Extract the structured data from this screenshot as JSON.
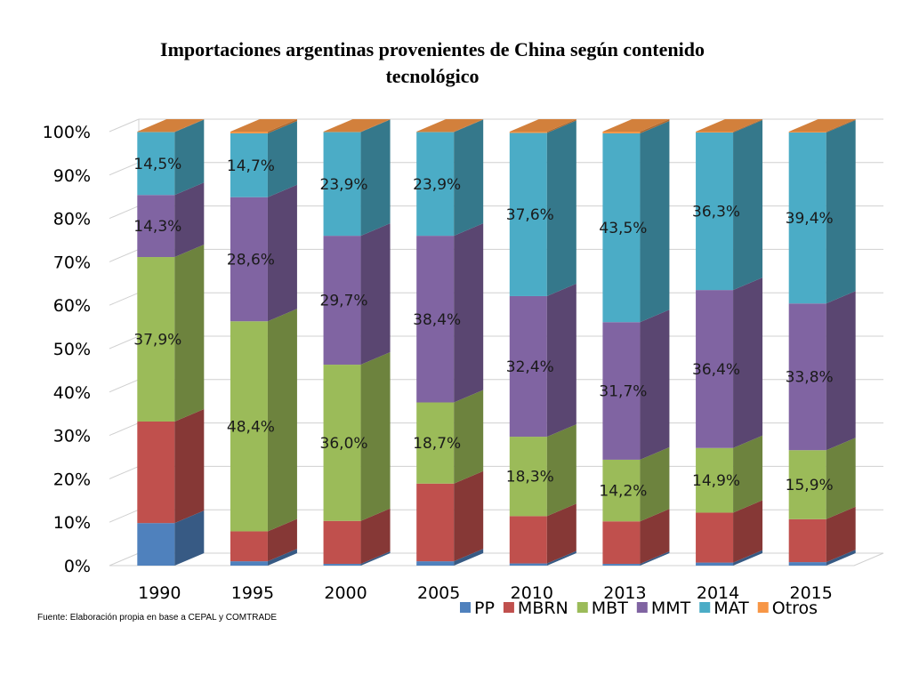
{
  "chart_data": {
    "type": "bar",
    "stacked": true,
    "three_d": true,
    "title_lines": [
      "Importaciones argentinas provenientes de China según contenido",
      "tecnológico"
    ],
    "categories": [
      "1990",
      "1995",
      "2000",
      "2005",
      "2010",
      "2013",
      "2014",
      "2015"
    ],
    "ylim": [
      0,
      100
    ],
    "y_ticks": [
      "0%",
      "10%",
      "20%",
      "30%",
      "40%",
      "50%",
      "60%",
      "70%",
      "80%",
      "90%",
      "100%"
    ],
    "grid": true,
    "legend_position": "bottom-right",
    "series": [
      {
        "name": "PP",
        "color": "#4F81BD",
        "values": [
          9.8,
          1.0,
          0.4,
          1.0,
          0.5,
          0.4,
          0.7,
          0.8
        ],
        "labels": [
          "",
          "",
          "",
          "",
          "",
          "",
          "",
          ""
        ]
      },
      {
        "name": "MBRN",
        "color": "#C0504D",
        "values": [
          23.4,
          6.9,
          9.9,
          17.9,
          10.9,
          9.8,
          11.5,
          9.9
        ],
        "labels": [
          "",
          "",
          "",
          "",
          "",
          "",
          "",
          ""
        ]
      },
      {
        "name": "MBT",
        "color": "#9BBB59",
        "values": [
          37.9,
          48.4,
          36.0,
          18.7,
          18.3,
          14.2,
          14.9,
          15.9
        ],
        "labels": [
          "37,9%",
          "48,4%",
          "36,0%",
          "18,7%",
          "18,3%",
          "14,2%",
          "14,9%",
          "15,9%"
        ]
      },
      {
        "name": "MMT",
        "color": "#8064A2",
        "values": [
          14.3,
          28.6,
          29.7,
          38.4,
          32.4,
          31.7,
          36.4,
          33.8
        ],
        "labels": [
          "14,3%",
          "28,6%",
          "29,7%",
          "38,4%",
          "32,4%",
          "31,7%",
          "36,4%",
          "33,8%"
        ]
      },
      {
        "name": "MAT",
        "color": "#4BACC6",
        "values": [
          14.5,
          14.7,
          23.9,
          23.9,
          37.6,
          43.5,
          36.3,
          39.4
        ],
        "labels": [
          "14,5%",
          "14,7%",
          "23,9%",
          "23,9%",
          "37,6%",
          "43,5%",
          "36,3%",
          "39,4%"
        ]
      },
      {
        "name": "Otros",
        "color": "#F79646",
        "values": [
          0.1,
          0.4,
          0.1,
          0.1,
          0.3,
          0.4,
          0.2,
          0.2
        ],
        "labels": [
          "",
          "",
          "",
          "",
          "",
          "",
          "",
          ""
        ]
      }
    ],
    "source_note": "Fuente: Elaboración propia en base a CEPAL y COMTRADE"
  }
}
